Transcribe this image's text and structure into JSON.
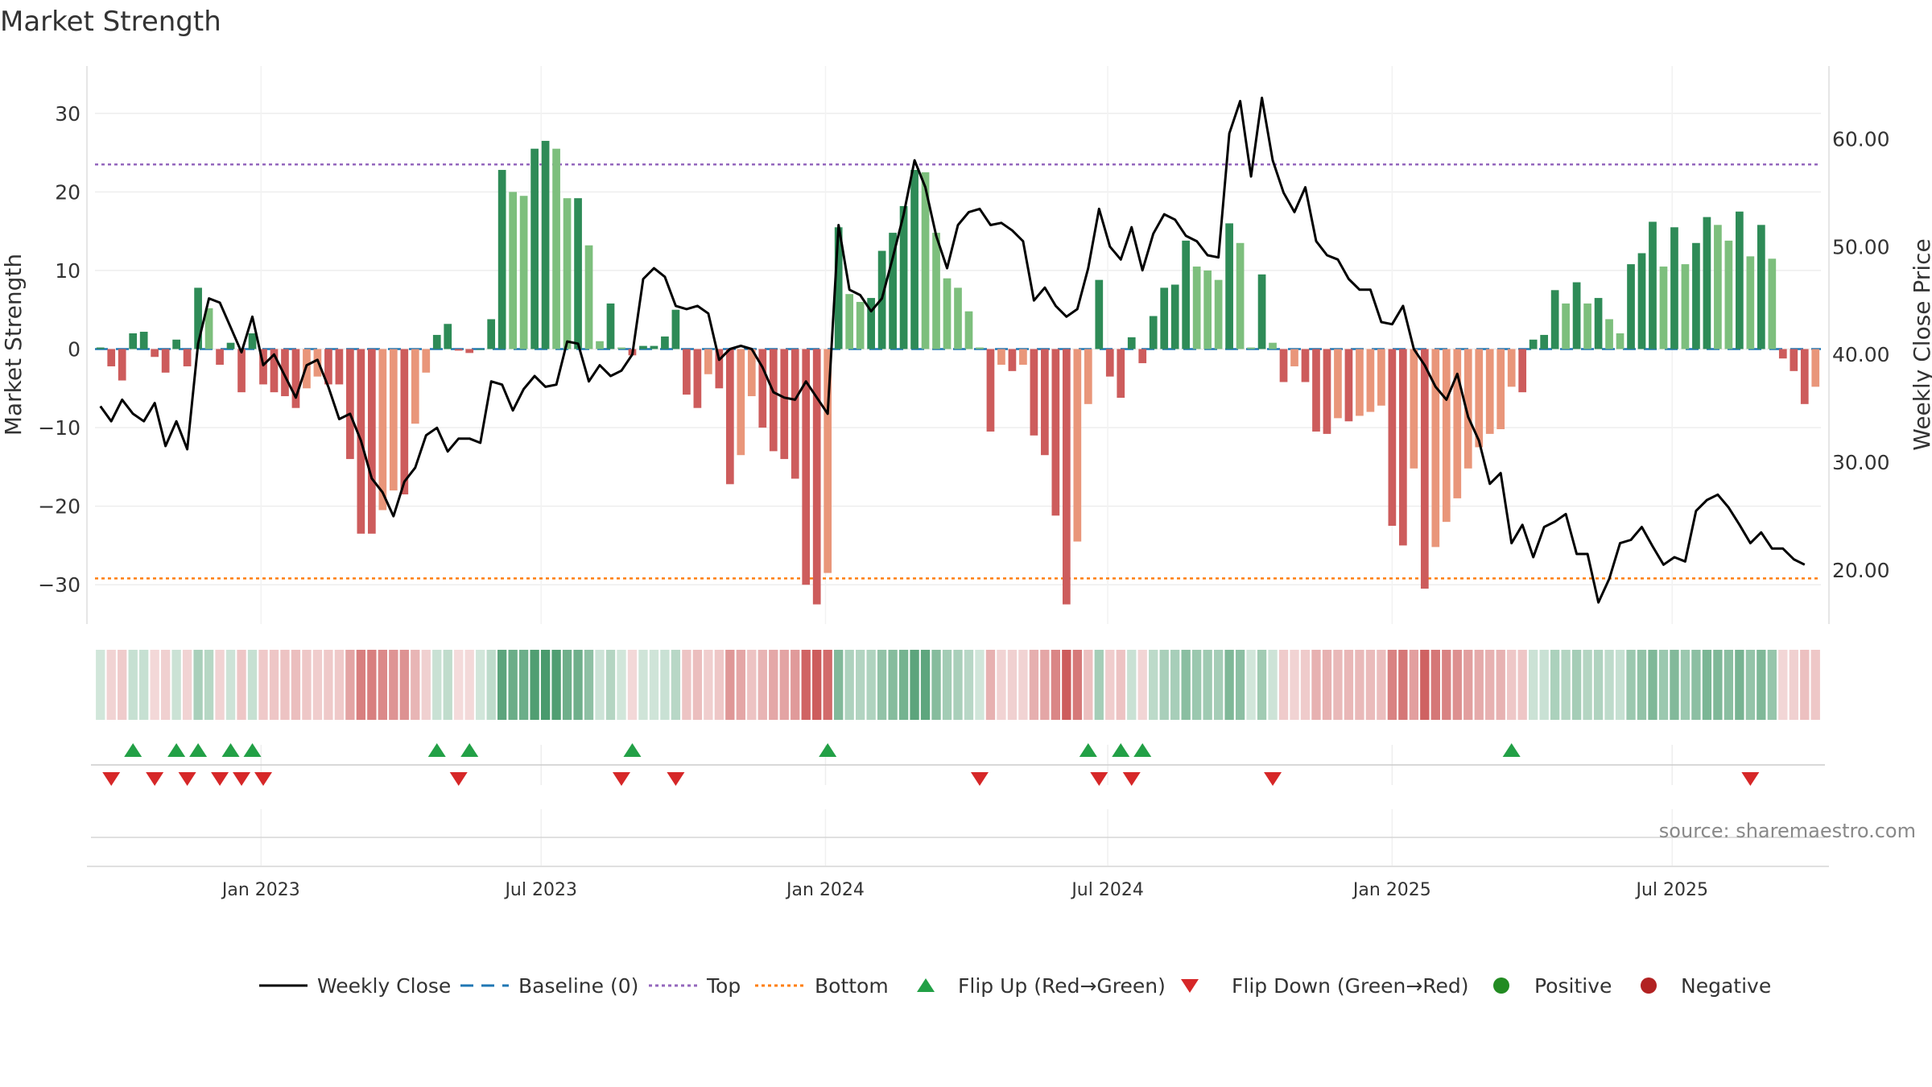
{
  "chart_data": {
    "type": "bar",
    "title": "Market Strength",
    "ylabel": "Market Strength",
    "y2label": "Weekly Close Price",
    "ylim": [
      -35,
      35
    ],
    "y2lim": [
      15,
      66
    ],
    "yticks": [
      -30,
      -20,
      -10,
      0,
      10,
      20,
      30
    ],
    "yticklabels": [
      "−30",
      "−20",
      "−10",
      "0",
      "10",
      "20",
      "30"
    ],
    "y2ticks": [
      20,
      30,
      40,
      50,
      60
    ],
    "y2ticklabels": [
      "20.00",
      "30.00",
      "40.00",
      "50.00",
      "60.00"
    ],
    "xlabels": [
      "Jan 2023",
      "Jul 2023",
      "Jan 2024",
      "Jul 2024",
      "Jan 2025",
      "Jul 2025"
    ],
    "xlabel_weeks": [
      14.8,
      40.6,
      66.8,
      92.8,
      119.0,
      144.8
    ],
    "top_line": 23.5,
    "bottom_line": -29.2,
    "strength": [
      0.2,
      -2.2,
      -4.0,
      2.0,
      2.2,
      -1.0,
      -3.0,
      1.2,
      -2.2,
      7.8,
      5.2,
      -2.0,
      0.8,
      -5.5,
      2.0,
      -4.5,
      -5.5,
      -6.0,
      -7.5,
      -5.0,
      -3.5,
      -4.5,
      -4.5,
      -14.0,
      -23.5,
      -23.5,
      -20.5,
      -18.0,
      -18.5,
      -9.5,
      -3.0,
      1.8,
      3.2,
      -0.2,
      -0.5,
      0.0,
      3.8,
      22.8,
      20.0,
      19.5,
      25.5,
      26.5,
      25.5,
      19.2,
      19.2,
      13.2,
      1.0,
      5.8,
      0.2,
      -0.8,
      0.4,
      0.4,
      1.6,
      5.0,
      -5.8,
      -7.5,
      -3.2,
      -5.0,
      -17.2,
      -13.5,
      -6.0,
      -10.0,
      -13.0,
      -14.0,
      -16.5,
      -30.0,
      -32.5,
      -28.5,
      15.5,
      7.0,
      6.0,
      6.5,
      12.5,
      14.8,
      18.2,
      22.8,
      22.5,
      14.8,
      9.0,
      7.8,
      4.8,
      0.2,
      -10.5,
      -2.0,
      -2.8,
      -2.0,
      -11.0,
      -13.5,
      -21.2,
      -32.5,
      -24.5,
      -7.0,
      8.8,
      -3.5,
      -6.2,
      1.5,
      -1.8,
      4.2,
      7.8,
      8.2,
      13.8,
      10.5,
      10.0,
      8.8,
      16.0,
      13.5,
      0.2,
      9.5,
      0.8,
      -4.2,
      -2.2,
      -4.2,
      -10.5,
      -10.8,
      -8.8,
      -9.2,
      -8.5,
      -8.0,
      -7.2,
      -22.5,
      -25.0,
      -15.2,
      -30.5,
      -25.2,
      -22.0,
      -19.0,
      -15.2,
      -12.5,
      -10.8,
      -10.2,
      -4.8,
      -5.5,
      1.2,
      1.8,
      7.5,
      5.8,
      8.5,
      5.8,
      6.5,
      3.8,
      2.0,
      10.8,
      12.2,
      16.2,
      10.5,
      15.5,
      10.8,
      13.5,
      16.8,
      15.8,
      13.8,
      17.5,
      11.8,
      15.8,
      11.5,
      -1.2,
      -2.8,
      -7.0,
      -4.8
    ],
    "close": [
      35.2,
      33.8,
      35.8,
      34.5,
      33.8,
      35.5,
      31.5,
      33.8,
      31.2,
      41.0,
      45.2,
      44.8,
      42.5,
      40.2,
      43.5,
      39.0,
      40.0,
      38.0,
      36.0,
      39.0,
      39.5,
      37.0,
      34.0,
      34.5,
      32.0,
      28.5,
      27.2,
      25.0,
      28.2,
      29.5,
      32.5,
      33.2,
      31.0,
      32.2,
      32.2,
      31.8,
      37.5,
      37.2,
      34.8,
      36.8,
      38.0,
      37.0,
      37.2,
      41.2,
      41.0,
      37.5,
      39.0,
      38.0,
      38.5,
      40.0,
      47.0,
      48.0,
      47.2,
      44.5,
      44.2,
      44.5,
      43.8,
      39.5,
      40.5,
      40.8,
      40.5,
      38.8,
      36.5,
      36.0,
      35.8,
      37.5,
      36.0,
      34.5,
      52.0,
      46.0,
      45.5,
      44.0,
      45.2,
      49.0,
      53.0,
      58.0,
      55.5,
      51.0,
      48.0,
      52.0,
      53.2,
      53.5,
      52.0,
      52.2,
      51.5,
      50.5,
      45.0,
      46.2,
      44.5,
      43.5,
      44.2,
      48.0,
      53.5,
      50.0,
      48.8,
      51.8,
      47.8,
      51.2,
      53.0,
      52.5,
      51.0,
      50.5,
      49.2,
      49.0,
      60.5,
      63.5,
      56.5,
      63.8,
      58.0,
      55.0,
      53.2,
      55.5,
      50.5,
      49.2,
      48.8,
      47.0,
      46.0,
      46.0,
      43.0,
      42.8,
      44.5,
      40.5,
      39.0,
      37.0,
      35.8,
      38.2,
      34.2,
      32.0,
      28.0,
      29.0,
      22.5,
      24.2,
      21.2,
      24.0,
      24.5,
      25.2,
      21.5,
      21.5,
      17.0,
      19.2,
      22.5,
      22.8,
      24.0,
      22.2,
      20.5,
      21.2,
      20.8,
      25.5,
      26.5,
      27.0,
      25.8,
      24.2,
      22.5,
      23.5,
      22.0,
      22.0,
      21.0,
      20.5
    ],
    "flips_up": [
      3,
      7,
      9,
      12,
      14,
      31,
      34,
      49,
      67,
      91,
      94,
      96,
      130
    ],
    "flips_down": [
      1,
      5,
      8,
      11,
      13,
      15,
      33,
      48,
      53,
      81,
      92,
      95,
      108,
      152
    ],
    "legend": [
      "Weekly Close",
      "Baseline (0)",
      "Top",
      "Bottom",
      "Flip Up (Red→Green)",
      "Flip Down (Green→Red)",
      "Positive",
      "Negative"
    ],
    "source": "source: sharemaestro.com",
    "colors": {
      "green_dark": "#2e8b57",
      "green_light": "#7dbf7d",
      "red_dark": "#cd5c5c",
      "red_light": "#e9967a",
      "close": "#000000",
      "baseline": "#1f77b4",
      "top": "#9467bd",
      "bottom": "#ff7f0e",
      "flip_up": "#22a046",
      "flip_down": "#d62728",
      "positive": "#228b22",
      "negative": "#b22222"
    }
  }
}
